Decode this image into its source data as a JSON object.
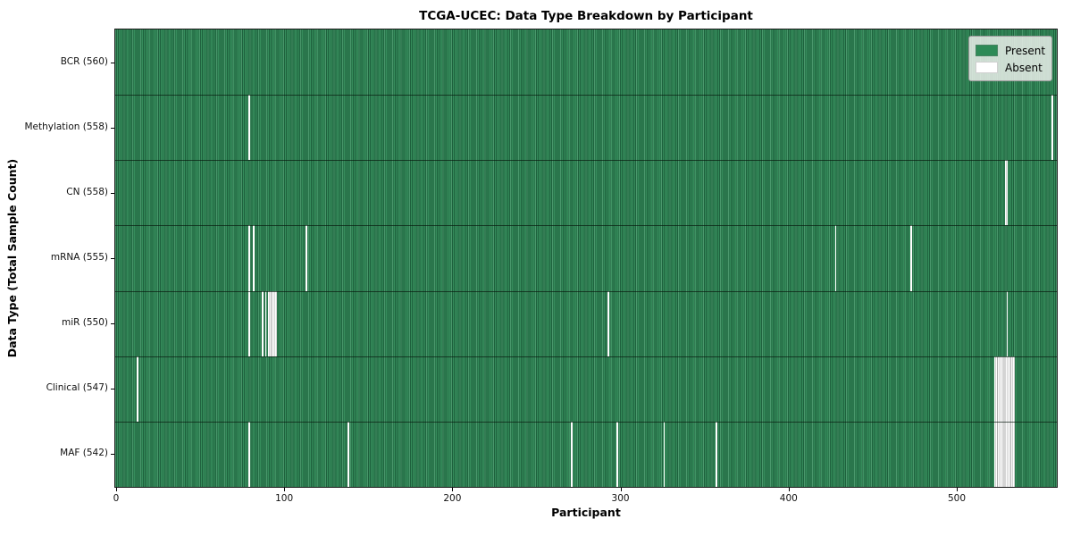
{
  "figure": {
    "title": "TCGA-UCEC: Data Type Breakdown by Participant",
    "xlabel": "Participant",
    "ylabel": "Data Type (Total Sample Count)"
  },
  "legend": {
    "items": [
      {
        "label": "Present",
        "color": "#2e8b57"
      },
      {
        "label": "Absent",
        "color": "#ffffff"
      }
    ]
  },
  "chart_data": {
    "type": "heatmap",
    "title": "TCGA-UCEC: Data Type Breakdown by Participant",
    "xlabel": "Participant",
    "ylabel": "Data Type (Total Sample Count)",
    "legend_position": "upper right",
    "grid": false,
    "total_participants": 560,
    "xlim": [
      -0.5,
      559.5
    ],
    "xticks": [
      0,
      100,
      200,
      300,
      400,
      500
    ],
    "colors": {
      "present": "#2e8b57",
      "absent": "#ffffff"
    },
    "rows": [
      {
        "data_type": "BCR",
        "label": "BCR (560)",
        "present_count": 560,
        "absent_participants": []
      },
      {
        "data_type": "Methylation",
        "label": "Methylation (558)",
        "present_count": 558,
        "absent_participants": [
          79,
          557
        ]
      },
      {
        "data_type": "CN",
        "label": "CN (558)",
        "present_count": 558,
        "absent_participants": [
          529,
          530
        ]
      },
      {
        "data_type": "mRNA",
        "label": "mRNA (555)",
        "present_count": 555,
        "absent_participants": [
          79,
          82,
          113,
          428,
          473
        ]
      },
      {
        "data_type": "miR",
        "label": "miR (550)",
        "present_count": 550,
        "absent_participants": [
          79,
          87,
          89,
          91,
          92,
          93,
          94,
          95,
          293,
          530
        ]
      },
      {
        "data_type": "Clinical",
        "label": "Clinical (547)",
        "present_count": 547,
        "absent_participants": [
          13,
          523,
          524,
          525,
          526,
          527,
          528,
          529,
          530,
          531,
          532,
          533,
          534
        ]
      },
      {
        "data_type": "MAF",
        "label": "MAF (542)",
        "present_count": 542,
        "absent_participants": [
          79,
          138,
          271,
          298,
          326,
          357,
          523,
          524,
          525,
          526,
          527,
          528,
          529,
          530,
          531,
          532,
          533,
          534
        ]
      }
    ]
  }
}
